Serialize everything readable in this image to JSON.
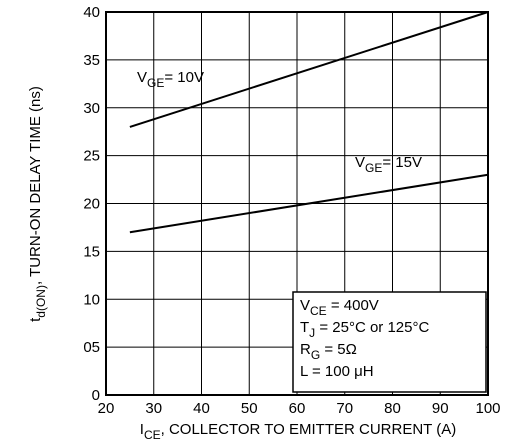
{
  "chart_data": {
    "type": "line",
    "title": "",
    "xlabel": {
      "main": "I",
      "sub": "CE",
      "rest": ", COLLECTOR TO  EMITTER  CURRENT (A)"
    },
    "ylabel": {
      "main": "t",
      "sub": "d(ON)",
      "rest": ", TURN-ON DELAY TIME (ns)"
    },
    "xlim": [
      20,
      100
    ],
    "ylim": [
      0,
      40
    ],
    "grid": true,
    "x_ticks": [
      "20",
      "30",
      "40",
      "50",
      "60",
      "70",
      "80",
      "90",
      "100"
    ],
    "y_ticks": [
      "0",
      "05",
      "10",
      "15",
      "20",
      "25",
      "30",
      "35",
      "40"
    ],
    "series": [
      {
        "name": "10V",
        "label": {
          "main": "V",
          "sub": "GE",
          "rest": "= 10V"
        },
        "x": [
          25,
          100
        ],
        "y": [
          28,
          40
        ]
      },
      {
        "name": "15V",
        "label": {
          "main": "V",
          "sub": "GE",
          "rest": "= 15V"
        },
        "x": [
          25,
          100
        ],
        "y": [
          17,
          23
        ]
      }
    ],
    "conditions": [
      {
        "main": "V",
        "sub": "CE",
        "rest": " = 400V"
      },
      {
        "main": "T",
        "sub": "J",
        "rest": " = 25°C or 125°C"
      },
      {
        "main": "R",
        "sub": "G",
        "rest": " = 5Ω"
      },
      {
        "main": "L = 100 μH",
        "sub": "",
        "rest": ""
      }
    ]
  }
}
